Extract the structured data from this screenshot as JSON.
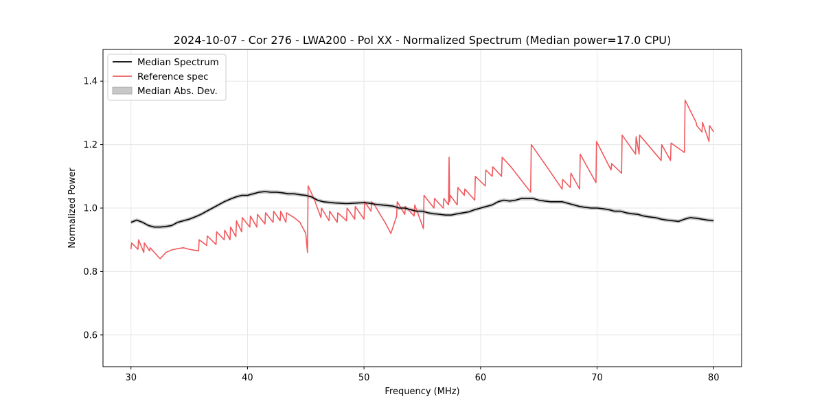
{
  "chart_data": {
    "type": "line",
    "title": "2024-10-07 - Cor 276 - LWA200 - Pol XX - Normalized Spectrum (Median power=17.0 CPU)",
    "xlabel": "Frequency (MHz)",
    "ylabel": "Normalized Power",
    "xlim": [
      27.6,
      82.4
    ],
    "ylim": [
      0.5,
      1.5
    ],
    "xticks": [
      30,
      40,
      50,
      60,
      70,
      80
    ],
    "yticks": [
      0.6,
      0.8,
      1.0,
      1.2,
      1.4
    ],
    "xtick_labels": [
      "30",
      "40",
      "50",
      "60",
      "70",
      "80"
    ],
    "ytick_labels": [
      "0.6",
      "0.8",
      "1.0",
      "1.2",
      "1.4"
    ],
    "grid": true,
    "legend": {
      "location": "upper-left",
      "entries": [
        {
          "label": "Median Spectrum",
          "color": "#000000",
          "kind": "line"
        },
        {
          "label": "Reference spec",
          "color": "#f0595d",
          "kind": "line"
        },
        {
          "label": "Median Abs. Dev.",
          "color": "#c8c8c8",
          "kind": "patch"
        }
      ]
    },
    "series": [
      {
        "name": "Median Spectrum",
        "color": "#000000",
        "x": [
          30,
          30.5,
          31,
          31.5,
          32,
          32.5,
          33,
          33.5,
          34,
          34.5,
          35,
          35.5,
          36,
          36.5,
          37,
          37.5,
          38,
          38.5,
          39,
          39.5,
          40,
          40.5,
          41,
          41.5,
          42,
          42.5,
          43,
          43.5,
          44,
          44.5,
          45,
          45.5,
          46,
          46.5,
          47,
          47.5,
          48,
          48.5,
          49,
          49.5,
          50,
          50.5,
          51,
          51.5,
          52,
          52.5,
          53,
          53.5,
          54,
          54.5,
          55,
          55.5,
          56,
          56.5,
          57,
          57.5,
          58,
          58.5,
          59,
          59.5,
          60,
          60.5,
          61,
          61.5,
          62,
          62.5,
          63,
          63.5,
          64,
          64.5,
          65,
          65.5,
          66,
          66.5,
          67,
          67.5,
          68,
          68.5,
          69,
          69.5,
          70,
          70.5,
          71,
          71.5,
          72,
          72.5,
          73,
          73.5,
          74,
          74.5,
          75,
          75.5,
          76,
          76.5,
          77,
          77.5,
          78,
          78.5,
          79,
          79.5,
          80
        ],
        "values": [
          0.955,
          0.962,
          0.955,
          0.945,
          0.94,
          0.94,
          0.942,
          0.945,
          0.955,
          0.96,
          0.965,
          0.972,
          0.98,
          0.99,
          1.0,
          1.01,
          1.02,
          1.028,
          1.035,
          1.04,
          1.04,
          1.045,
          1.05,
          1.052,
          1.05,
          1.05,
          1.048,
          1.045,
          1.045,
          1.042,
          1.04,
          1.035,
          1.025,
          1.02,
          1.018,
          1.016,
          1.015,
          1.014,
          1.015,
          1.016,
          1.017,
          1.015,
          1.012,
          1.01,
          1.008,
          1.006,
          1.0,
          1.0,
          0.995,
          0.99,
          0.99,
          0.985,
          0.982,
          0.98,
          0.978,
          0.978,
          0.982,
          0.985,
          0.988,
          0.995,
          1.0,
          1.005,
          1.01,
          1.02,
          1.025,
          1.022,
          1.025,
          1.03,
          1.03,
          1.03,
          1.025,
          1.022,
          1.02,
          1.02,
          1.02,
          1.015,
          1.01,
          1.005,
          1.002,
          1.0,
          1.0,
          0.998,
          0.995,
          0.99,
          0.99,
          0.985,
          0.982,
          0.98,
          0.975,
          0.972,
          0.97,
          0.965,
          0.962,
          0.96,
          0.958,
          0.965,
          0.97,
          0.968,
          0.965,
          0.962,
          0.96
        ],
        "mad": 0.006
      },
      {
        "name": "Reference spec",
        "color": "#f0595d",
        "x": [
          30.0,
          30.05,
          30.6,
          30.65,
          31.1,
          31.15,
          31.6,
          31.65,
          32.5,
          33.0,
          33.5,
          34.0,
          34.5,
          35.0,
          35.8,
          35.85,
          36.5,
          36.55,
          37.3,
          37.35,
          38.0,
          38.05,
          38.5,
          38.55,
          39.0,
          39.05,
          39.5,
          39.55,
          40.2,
          40.25,
          40.8,
          40.85,
          41.5,
          41.55,
          42.2,
          42.25,
          42.8,
          42.85,
          43.3,
          43.35,
          44.0,
          44.5,
          45.0,
          45.15,
          45.2,
          45.7,
          46.3,
          46.35,
          47.0,
          47.05,
          47.7,
          47.75,
          48.5,
          48.55,
          49.2,
          49.25,
          50.0,
          50.05,
          50.6,
          50.65,
          51.0,
          51.05,
          51.8,
          52.3,
          52.8,
          52.85,
          53.5,
          53.55,
          54.3,
          54.35,
          55.1,
          55.15,
          56.0,
          56.05,
          56.8,
          56.85,
          57.25,
          57.3,
          57.35,
          57.4,
          58.0,
          58.05,
          58.6,
          58.65,
          59.5,
          59.55,
          60.4,
          60.45,
          61.0,
          61.05,
          61.8,
          61.85,
          62.6,
          64.3,
          64.35,
          65.5,
          67.0,
          67.05,
          67.7,
          67.75,
          68.5,
          68.55,
          69.9,
          69.95,
          71.2,
          71.25,
          72.1,
          72.15,
          73.3,
          73.35,
          73.6,
          73.65,
          75.5,
          75.55,
          76.3,
          76.35,
          77.5,
          77.55,
          78.5,
          78.55,
          79.0,
          79.05,
          79.6,
          79.65,
          80.0
        ],
        "values": [
          0.87,
          0.89,
          0.87,
          0.9,
          0.86,
          0.89,
          0.865,
          0.875,
          0.84,
          0.86,
          0.868,
          0.872,
          0.875,
          0.87,
          0.865,
          0.9,
          0.882,
          0.912,
          0.885,
          0.925,
          0.9,
          0.93,
          0.9,
          0.94,
          0.91,
          0.96,
          0.925,
          0.97,
          0.94,
          0.975,
          0.94,
          0.98,
          0.95,
          0.985,
          0.955,
          0.99,
          0.96,
          0.99,
          0.955,
          0.985,
          0.97,
          0.955,
          0.92,
          0.86,
          1.07,
          1.03,
          0.97,
          1.0,
          0.96,
          0.99,
          0.955,
          0.985,
          0.96,
          1.0,
          0.965,
          1.005,
          0.965,
          1.02,
          0.99,
          1.02,
          1.005,
          1.0,
          0.955,
          0.92,
          0.975,
          1.02,
          0.98,
          1.005,
          0.975,
          1.01,
          0.935,
          1.04,
          1.0,
          1.03,
          1.0,
          1.03,
          1.01,
          1.16,
          1.02,
          1.04,
          1.01,
          1.065,
          1.04,
          1.06,
          1.025,
          1.1,
          1.07,
          1.12,
          1.1,
          1.13,
          1.1,
          1.16,
          1.13,
          1.05,
          1.2,
          1.14,
          1.06,
          1.09,
          1.065,
          1.11,
          1.06,
          1.17,
          1.08,
          1.21,
          1.12,
          1.14,
          1.11,
          1.23,
          1.17,
          1.225,
          1.17,
          1.23,
          1.15,
          1.2,
          1.15,
          1.205,
          1.175,
          1.34,
          1.27,
          1.26,
          1.24,
          1.27,
          1.21,
          1.26,
          1.24
        ]
      }
    ]
  }
}
